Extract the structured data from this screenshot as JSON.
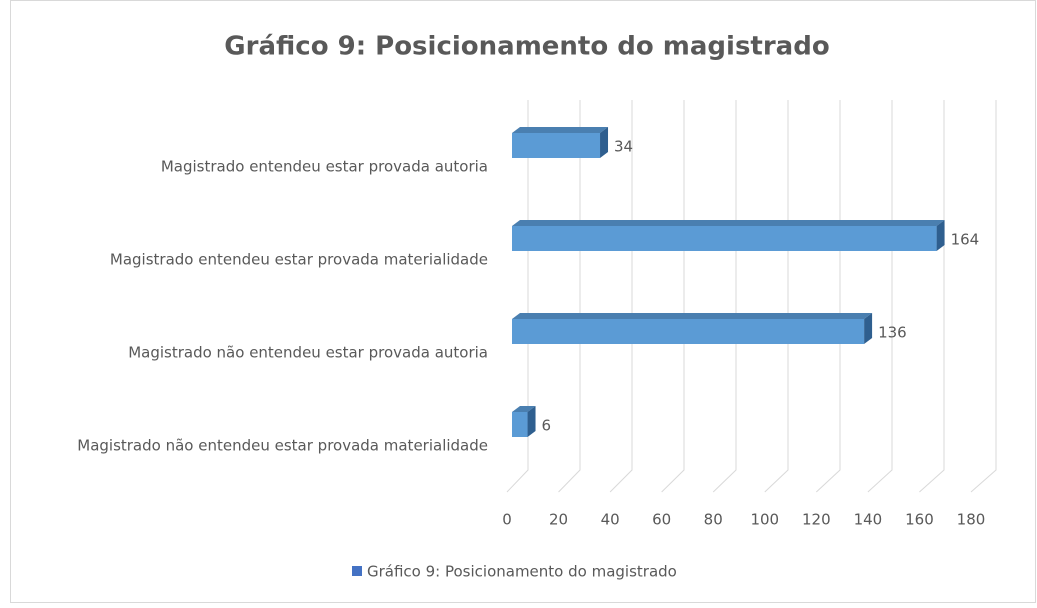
{
  "chart_data": {
    "type": "bar",
    "title": "Gráfico 9: Posicionamento do magistrado",
    "categories": [
      "Magistrado entendeu estar provada autoria",
      "Magistrado entendeu estar provada materialidade",
      "Magistrado não entendeu estar provada autoria",
      "Magistrado não entendeu estar provada materialidade"
    ],
    "series": [
      {
        "name": "Gráfico 9: Posicionamento do magistrado",
        "color": "#5b9bd5",
        "values": [
          34,
          164,
          136,
          6
        ]
      }
    ],
    "xlim": [
      0,
      180
    ],
    "xticks": [
      0,
      20,
      40,
      60,
      80,
      100,
      120,
      140,
      160,
      180
    ],
    "grid": true,
    "legend": "bottom"
  }
}
